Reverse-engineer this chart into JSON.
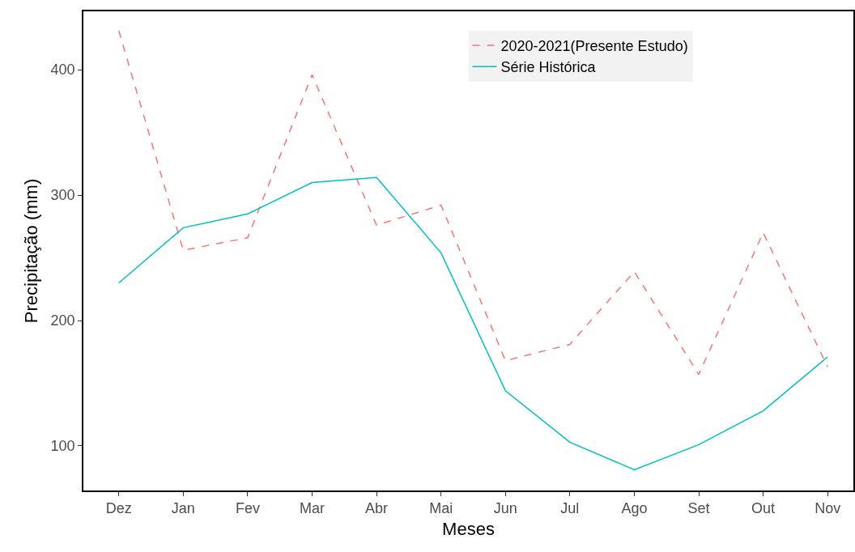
{
  "chart_data": {
    "type": "line",
    "xlabel": "Meses",
    "ylabel": "Precipitação (mm)",
    "categories": [
      "Dez",
      "Jan",
      "Fev",
      "Mar",
      "Abr",
      "Mai",
      "Jun",
      "Jul",
      "Ago",
      "Set",
      "Out",
      "Nov"
    ],
    "series": [
      {
        "name": "2020-2021(Presente Estudo)",
        "color": "#f8766d",
        "line_style": "dashed",
        "values": [
          431,
          256,
          266,
          396,
          276,
          292,
          168,
          181,
          239,
          157,
          270,
          163
        ]
      },
      {
        "name": "Série Histórica",
        "color": "#00bfc4",
        "line_style": "solid",
        "values": [
          230,
          274,
          285,
          310,
          314,
          254,
          144,
          103,
          81,
          101,
          128,
          171
        ]
      }
    ],
    "ylim": [
      64.5,
      446.5
    ],
    "yticks": [
      100,
      200,
      300,
      400
    ],
    "grid": false,
    "legend": "top right",
    "marker": "none"
  }
}
